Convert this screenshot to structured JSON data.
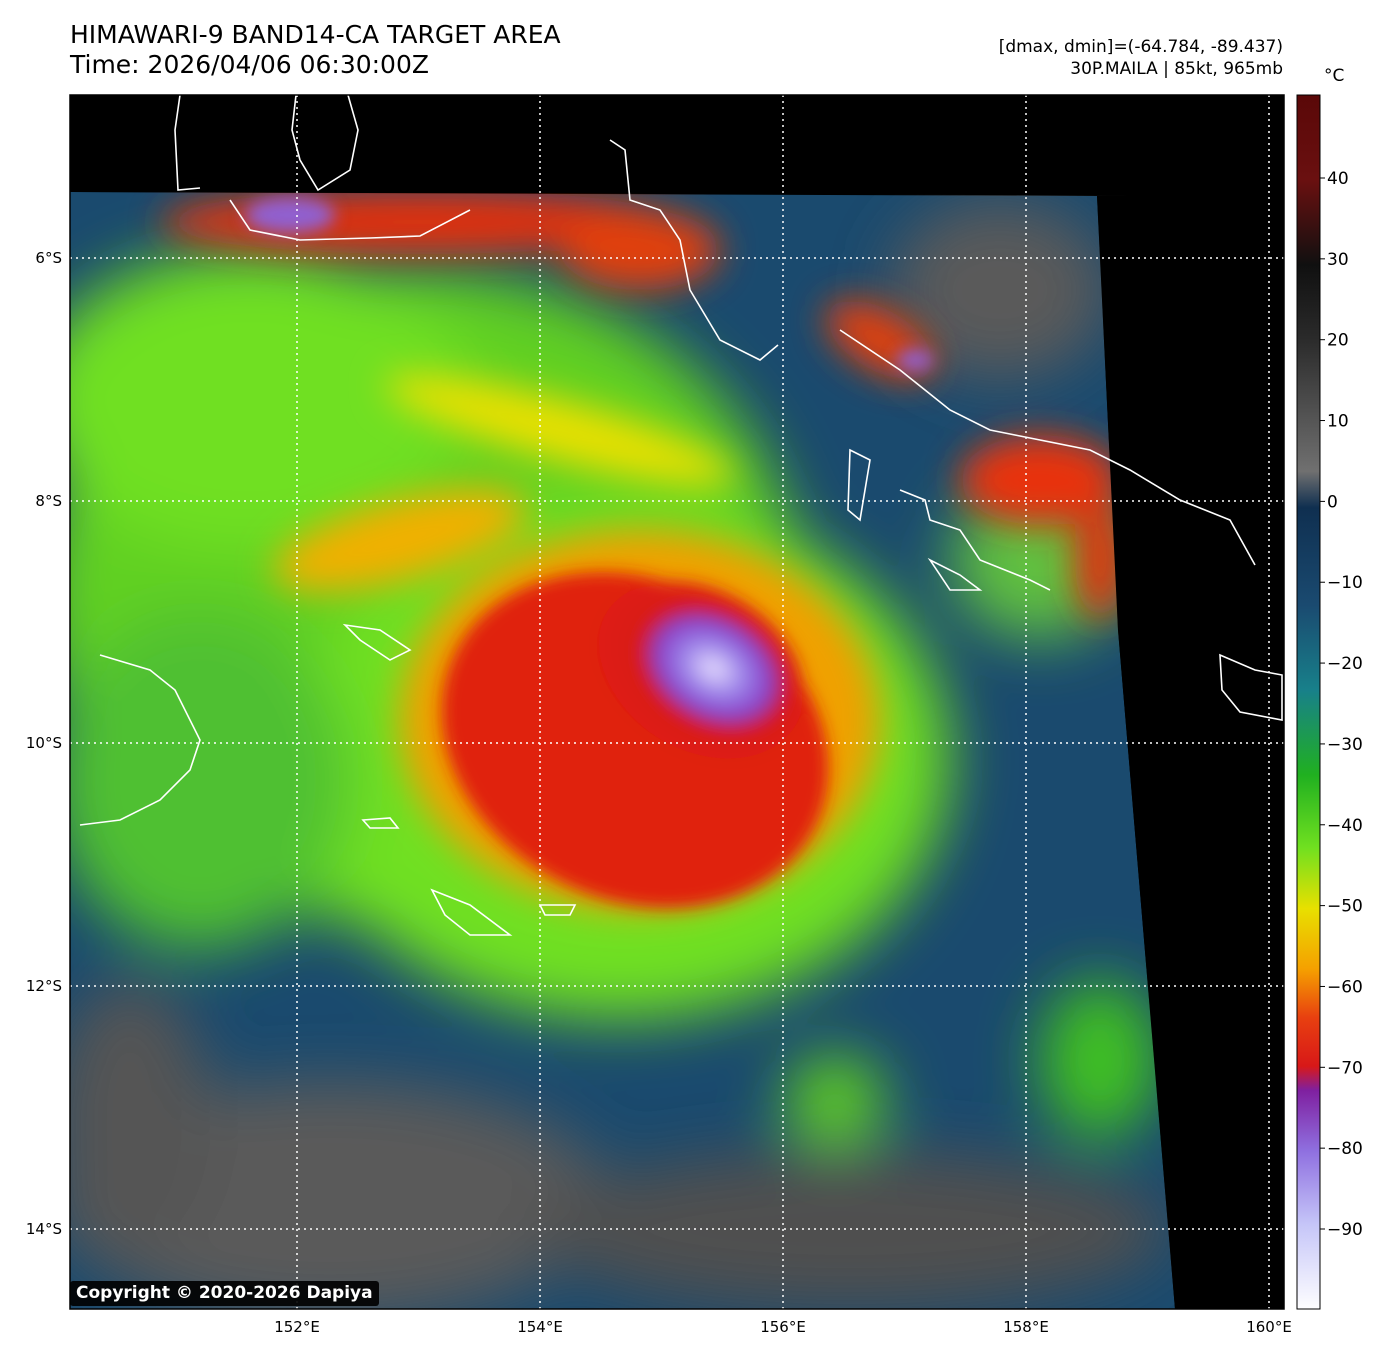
{
  "title": {
    "line1": "HIMAWARI-9 BAND14-CA TARGET AREA",
    "line2": "Time: 2026/04/06 06:30:00Z"
  },
  "info": {
    "range": "[dmax, dmin]=(-64.784, -89.437)",
    "storm": "30P.MAILA | 85kt, 965mb"
  },
  "colorbar": {
    "unit": "°C",
    "ticks": [
      "40",
      "30",
      "20",
      "10",
      "0",
      "−10",
      "−20",
      "−30",
      "−40",
      "−50",
      "−60",
      "−70",
      "−80",
      "−90"
    ],
    "colors": [
      "#fefeff",
      "#c5c5f8",
      "#8f70e0",
      "#7f20a0",
      "#d81818",
      "#e84010",
      "#f5a000",
      "#e8e000",
      "#70e020",
      "#20b020",
      "#18808a",
      "#1a4a70",
      "#0f2f50",
      "#505050",
      "#2a2a2a",
      "#101010",
      "#6a1010",
      "#5a0808"
    ]
  },
  "map": {
    "lat_labels": [
      "6°S",
      "8°S",
      "10°S",
      "12°S",
      "14°S"
    ],
    "lon_labels": [
      "152°E",
      "154°E",
      "156°E",
      "158°E",
      "160°E"
    ]
  },
  "copyright": "Copyright © 2020-2026 Dapiya"
}
